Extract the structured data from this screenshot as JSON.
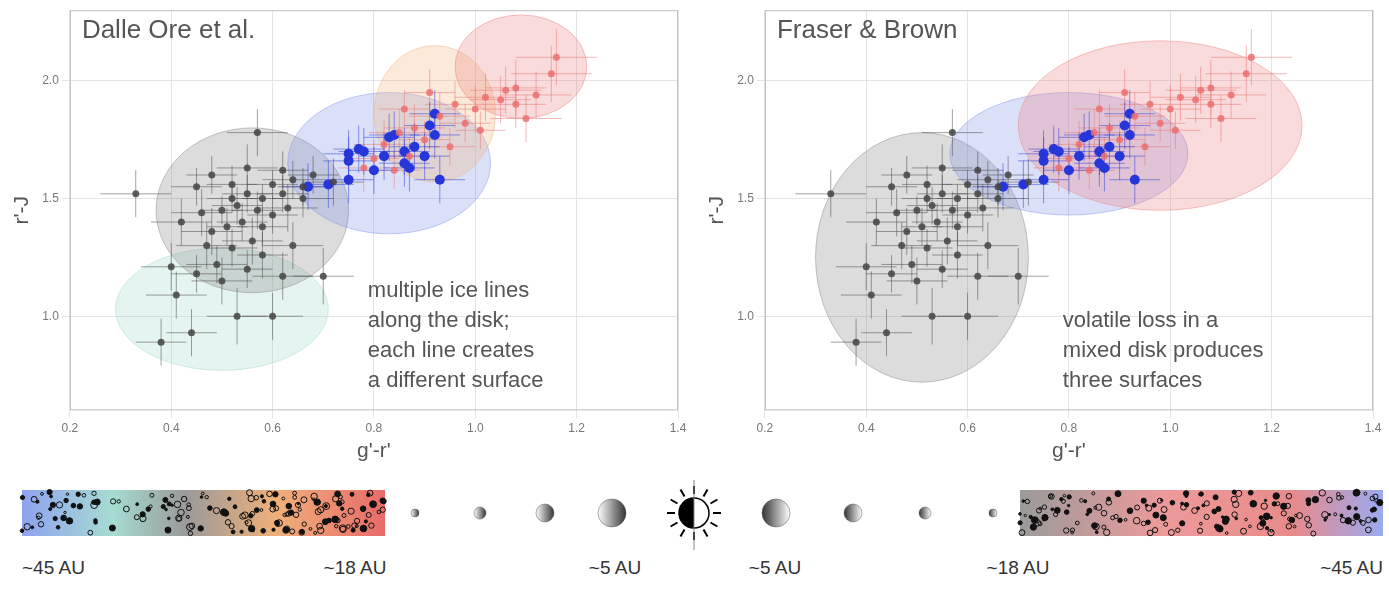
{
  "chart_data": [
    {
      "type": "scatter",
      "title": "Dalle Ore et al.",
      "annotation": [
        "multiple ice lines",
        "along the disk;",
        "each line creates",
        "a different surface"
      ],
      "x_label": "g'-r'",
      "y_label": "r'-J",
      "xlim": [
        0.2,
        1.4
      ],
      "ylim": [
        0.6,
        2.3
      ],
      "xticks": [
        0.2,
        0.4,
        0.6,
        0.8,
        {
          "value": 1,
          "label": "1.0"
        },
        1.2,
        1.4
      ],
      "yticks": [
        {
          "value": 1,
          "label": "1.0"
        },
        1.5,
        {
          "value": 2,
          "label": "2.0"
        }
      ],
      "grid": true,
      "regions": [
        {
          "color": "#9fd8c8",
          "center": [
            0.5,
            1.03
          ],
          "radii": [
            0.21,
            0.26
          ]
        },
        {
          "color": "#808080",
          "center": [
            0.56,
            1.45
          ],
          "radii": [
            0.19,
            0.35
          ]
        },
        {
          "color": "#7f8fe8",
          "center": [
            0.83,
            1.65
          ],
          "radii": [
            0.2,
            0.3
          ]
        },
        {
          "color": "#f2b478",
          "center": [
            0.92,
            1.86
          ],
          "radii": [
            0.12,
            0.29
          ]
        },
        {
          "color": "#ee7c7c",
          "center": [
            1.09,
            2.06
          ],
          "radii": [
            0.13,
            0.22
          ]
        }
      ],
      "series": [
        {
          "color": "#444444",
          "marker": "circle",
          "x": [
            0.38,
            0.44,
            0.41,
            0.53,
            0.6,
            0.4,
            0.45,
            0.5,
            0.49,
            0.55,
            0.62,
            0.7,
            0.47,
            0.52,
            0.56,
            0.48,
            0.51,
            0.54,
            0.58,
            0.46,
            0.5,
            0.53,
            0.57,
            0.6,
            0.63,
            0.52,
            0.55,
            0.58,
            0.62,
            0.66,
            0.33,
            0.45,
            0.52,
            0.6,
            0.64,
            0.68,
            0.48,
            0.55,
            0.62,
            0.57,
            0.72,
            0.66,
            0.58,
            0.64,
            0.42
          ],
          "y": [
            0.89,
            0.93,
            1.09,
            1.0,
            1.0,
            1.21,
            1.18,
            1.15,
            1.22,
            1.2,
            1.17,
            1.17,
            1.3,
            1.29,
            1.32,
            1.36,
            1.38,
            1.4,
            1.38,
            1.44,
            1.45,
            1.47,
            1.45,
            1.43,
            1.46,
            1.5,
            1.52,
            1.5,
            1.52,
            1.5,
            1.52,
            1.55,
            1.56,
            1.56,
            1.58,
            1.6,
            1.6,
            1.63,
            1.62,
            1.78,
            1.57,
            1.55,
            1.26,
            1.3,
            1.4
          ],
          "xerr": [
            0.05,
            0.05,
            0.06,
            0.06,
            0.06,
            0.06,
            0.05,
            0.06,
            0.06,
            0.05,
            0.06,
            0.06,
            0.06,
            0.05,
            0.06,
            0.06,
            0.04,
            0.05,
            0.05,
            0.06,
            0.04,
            0.05,
            0.05,
            0.05,
            0.06,
            0.05,
            0.05,
            0.04,
            0.05,
            0.06,
            0.07,
            0.05,
            0.05,
            0.05,
            0.06,
            0.05,
            0.05,
            0.06,
            0.05,
            0.06,
            0.06,
            0.05,
            0.05,
            0.06,
            0.06
          ],
          "yerr": [
            0.1,
            0.1,
            0.1,
            0.12,
            0.1,
            0.1,
            0.08,
            0.1,
            0.08,
            0.08,
            0.1,
            0.12,
            0.1,
            0.08,
            0.1,
            0.1,
            0.08,
            0.08,
            0.08,
            0.1,
            0.06,
            0.08,
            0.08,
            0.08,
            0.1,
            0.06,
            0.08,
            0.06,
            0.08,
            0.08,
            0.1,
            0.08,
            0.08,
            0.06,
            0.08,
            0.08,
            0.08,
            0.1,
            0.08,
            0.1,
            0.1,
            0.08,
            0.1,
            0.1,
            0.1
          ]
        },
        {
          "color": "#ec6f6f",
          "marker": "circle",
          "x": [
            0.78,
            0.8,
            0.82,
            0.84,
            0.85,
            0.87,
            0.88,
            0.9,
            0.93,
            0.95,
            0.96,
            0.98,
            1.0,
            1.01,
            1.02,
            1.05,
            1.06,
            1.08,
            1.1,
            1.12,
            1.15,
            1.16,
            1.08,
            0.91,
            0.86
          ],
          "y": [
            1.63,
            1.67,
            1.73,
            1.62,
            1.78,
            1.68,
            1.8,
            1.75,
            1.85,
            1.72,
            1.9,
            1.82,
            1.88,
            1.79,
            1.93,
            1.92,
            1.96,
            1.97,
            1.84,
            1.94,
            2.03,
            2.1,
            1.9,
            1.95,
            1.88
          ],
          "xerr": [
            0.05,
            0.05,
            0.06,
            0.05,
            0.06,
            0.05,
            0.06,
            0.05,
            0.06,
            0.05,
            0.06,
            0.05,
            0.06,
            0.05,
            0.06,
            0.06,
            0.07,
            0.06,
            0.07,
            0.07,
            0.08,
            0.08,
            0.06,
            0.05,
            0.05
          ],
          "yerr": [
            0.1,
            0.08,
            0.1,
            0.08,
            0.1,
            0.08,
            0.1,
            0.08,
            0.1,
            0.08,
            0.1,
            0.08,
            0.1,
            0.08,
            0.1,
            0.1,
            0.1,
            0.12,
            0.1,
            0.1,
            0.12,
            0.12,
            0.1,
            0.1,
            0.08
          ]
        },
        {
          "color": "#2636d8",
          "marker": "circle",
          "x": [
            0.67,
            0.71,
            0.75,
            0.75,
            0.77,
            0.78,
            0.75,
            0.82,
            0.83,
            0.84,
            0.86,
            0.87,
            0.88,
            0.9,
            0.91,
            0.92,
            0.92,
            0.93,
            0.8,
            0.86
          ],
          "y": [
            1.55,
            1.56,
            1.58,
            1.66,
            1.71,
            1.7,
            1.69,
            1.68,
            1.76,
            1.77,
            1.65,
            1.63,
            1.72,
            1.68,
            1.81,
            1.86,
            1.77,
            1.58,
            1.62,
            1.7
          ],
          "xerr": [
            0.05,
            0.05,
            0.05,
            0.05,
            0.05,
            0.05,
            0.05,
            0.05,
            0.05,
            0.05,
            0.05,
            0.05,
            0.05,
            0.05,
            0.05,
            0.05,
            0.05,
            0.05,
            0.05,
            0.05
          ],
          "yerr": [
            0.1,
            0.1,
            0.1,
            0.1,
            0.1,
            0.1,
            0.1,
            0.1,
            0.1,
            0.1,
            0.1,
            0.1,
            0.1,
            0.1,
            0.1,
            0.1,
            0.1,
            0.1,
            0.1,
            0.1
          ]
        }
      ]
    },
    {
      "type": "scatter",
      "title": "Fraser & Brown",
      "annotation": [
        "volatile loss in a",
        "mixed disk produces",
        "three surfaces"
      ],
      "x_label": "g'-r'",
      "y_label": "r'-J",
      "xlim": [
        0.2,
        1.4
      ],
      "ylim": [
        0.6,
        2.3
      ],
      "xticks": [
        0.2,
        0.4,
        0.6,
        0.8,
        {
          "value": 1,
          "label": "1.0"
        },
        1.2,
        1.4
      ],
      "yticks": [
        {
          "value": 1,
          "label": "1.0"
        },
        1.5,
        {
          "value": 2,
          "label": "2.0"
        }
      ],
      "grid": true,
      "regions": [
        {
          "color": "#808080",
          "center": [
            0.51,
            1.25
          ],
          "radii": [
            0.21,
            0.53
          ]
        },
        {
          "color": "#7f8fe8",
          "center": [
            0.8,
            1.69
          ],
          "radii": [
            0.235,
            0.26
          ]
        },
        {
          "color": "#ee7c7c",
          "center": [
            0.98,
            1.81
          ],
          "radii": [
            0.28,
            0.36
          ]
        }
      ],
      "series": [
        {
          "color": "#444444",
          "marker": "circle",
          "x": [
            0.38,
            0.44,
            0.41,
            0.53,
            0.6,
            0.4,
            0.45,
            0.5,
            0.49,
            0.55,
            0.62,
            0.7,
            0.47,
            0.52,
            0.56,
            0.48,
            0.51,
            0.54,
            0.58,
            0.46,
            0.5,
            0.53,
            0.57,
            0.6,
            0.63,
            0.52,
            0.55,
            0.58,
            0.62,
            0.66,
            0.33,
            0.45,
            0.52,
            0.6,
            0.64,
            0.68,
            0.48,
            0.55,
            0.62,
            0.57,
            0.72,
            0.66,
            0.58,
            0.64,
            0.42
          ],
          "y": [
            0.89,
            0.93,
            1.09,
            1.0,
            1.0,
            1.21,
            1.18,
            1.15,
            1.22,
            1.2,
            1.17,
            1.17,
            1.3,
            1.29,
            1.32,
            1.36,
            1.38,
            1.4,
            1.38,
            1.44,
            1.45,
            1.47,
            1.45,
            1.43,
            1.46,
            1.5,
            1.52,
            1.5,
            1.52,
            1.5,
            1.52,
            1.55,
            1.56,
            1.56,
            1.58,
            1.6,
            1.6,
            1.63,
            1.62,
            1.78,
            1.57,
            1.55,
            1.26,
            1.3,
            1.4
          ],
          "xerr": [
            0.05,
            0.05,
            0.06,
            0.06,
            0.06,
            0.06,
            0.05,
            0.06,
            0.06,
            0.05,
            0.06,
            0.06,
            0.06,
            0.05,
            0.06,
            0.06,
            0.04,
            0.05,
            0.05,
            0.06,
            0.04,
            0.05,
            0.05,
            0.05,
            0.06,
            0.05,
            0.05,
            0.04,
            0.05,
            0.06,
            0.07,
            0.05,
            0.05,
            0.05,
            0.06,
            0.05,
            0.05,
            0.06,
            0.05,
            0.06,
            0.06,
            0.05,
            0.05,
            0.06,
            0.06
          ],
          "yerr": [
            0.1,
            0.1,
            0.1,
            0.12,
            0.1,
            0.1,
            0.08,
            0.1,
            0.08,
            0.08,
            0.1,
            0.12,
            0.1,
            0.08,
            0.1,
            0.1,
            0.08,
            0.08,
            0.08,
            0.1,
            0.06,
            0.08,
            0.08,
            0.08,
            0.1,
            0.06,
            0.08,
            0.06,
            0.08,
            0.08,
            0.1,
            0.08,
            0.08,
            0.06,
            0.08,
            0.08,
            0.08,
            0.1,
            0.08,
            0.1,
            0.1,
            0.08,
            0.1,
            0.1,
            0.1
          ]
        },
        {
          "color": "#ec6f6f",
          "marker": "circle",
          "x": [
            0.78,
            0.8,
            0.82,
            0.84,
            0.85,
            0.87,
            0.88,
            0.9,
            0.93,
            0.95,
            0.96,
            0.98,
            1.0,
            1.01,
            1.02,
            1.05,
            1.06,
            1.08,
            1.1,
            1.12,
            1.15,
            1.16,
            1.08,
            0.91,
            0.86
          ],
          "y": [
            1.63,
            1.67,
            1.73,
            1.62,
            1.78,
            1.68,
            1.8,
            1.75,
            1.85,
            1.72,
            1.9,
            1.82,
            1.88,
            1.79,
            1.93,
            1.92,
            1.96,
            1.97,
            1.84,
            1.94,
            2.03,
            2.1,
            1.9,
            1.95,
            1.88
          ],
          "xerr": [
            0.05,
            0.05,
            0.06,
            0.05,
            0.06,
            0.05,
            0.06,
            0.05,
            0.06,
            0.05,
            0.06,
            0.05,
            0.06,
            0.05,
            0.06,
            0.06,
            0.07,
            0.06,
            0.07,
            0.07,
            0.08,
            0.08,
            0.06,
            0.05,
            0.05
          ],
          "yerr": [
            0.1,
            0.08,
            0.1,
            0.08,
            0.1,
            0.08,
            0.1,
            0.08,
            0.1,
            0.08,
            0.1,
            0.08,
            0.1,
            0.08,
            0.1,
            0.1,
            0.1,
            0.12,
            0.1,
            0.1,
            0.12,
            0.12,
            0.1,
            0.1,
            0.08
          ]
        },
        {
          "color": "#2636d8",
          "marker": "circle",
          "x": [
            0.67,
            0.71,
            0.75,
            0.75,
            0.77,
            0.78,
            0.75,
            0.82,
            0.83,
            0.84,
            0.86,
            0.87,
            0.88,
            0.9,
            0.91,
            0.92,
            0.92,
            0.93,
            0.8,
            0.86
          ],
          "y": [
            1.55,
            1.56,
            1.58,
            1.66,
            1.71,
            1.7,
            1.69,
            1.68,
            1.76,
            1.77,
            1.65,
            1.63,
            1.72,
            1.68,
            1.81,
            1.86,
            1.77,
            1.58,
            1.62,
            1.7
          ],
          "xerr": [
            0.05,
            0.05,
            0.05,
            0.05,
            0.05,
            0.05,
            0.05,
            0.05,
            0.05,
            0.05,
            0.05,
            0.05,
            0.05,
            0.05,
            0.05,
            0.05,
            0.05,
            0.05,
            0.05,
            0.05
          ],
          "yerr": [
            0.1,
            0.1,
            0.1,
            0.1,
            0.1,
            0.1,
            0.1,
            0.1,
            0.1,
            0.1,
            0.1,
            0.1,
            0.1,
            0.1,
            0.1,
            0.1,
            0.1,
            0.1,
            0.1,
            0.1
          ]
        }
      ]
    }
  ],
  "diagram": {
    "left_labels": [
      "~45 AU",
      "~18 AU",
      "~5 AU"
    ],
    "right_labels": [
      "~5 AU",
      "~18 AU",
      "~45 AU"
    ]
  }
}
